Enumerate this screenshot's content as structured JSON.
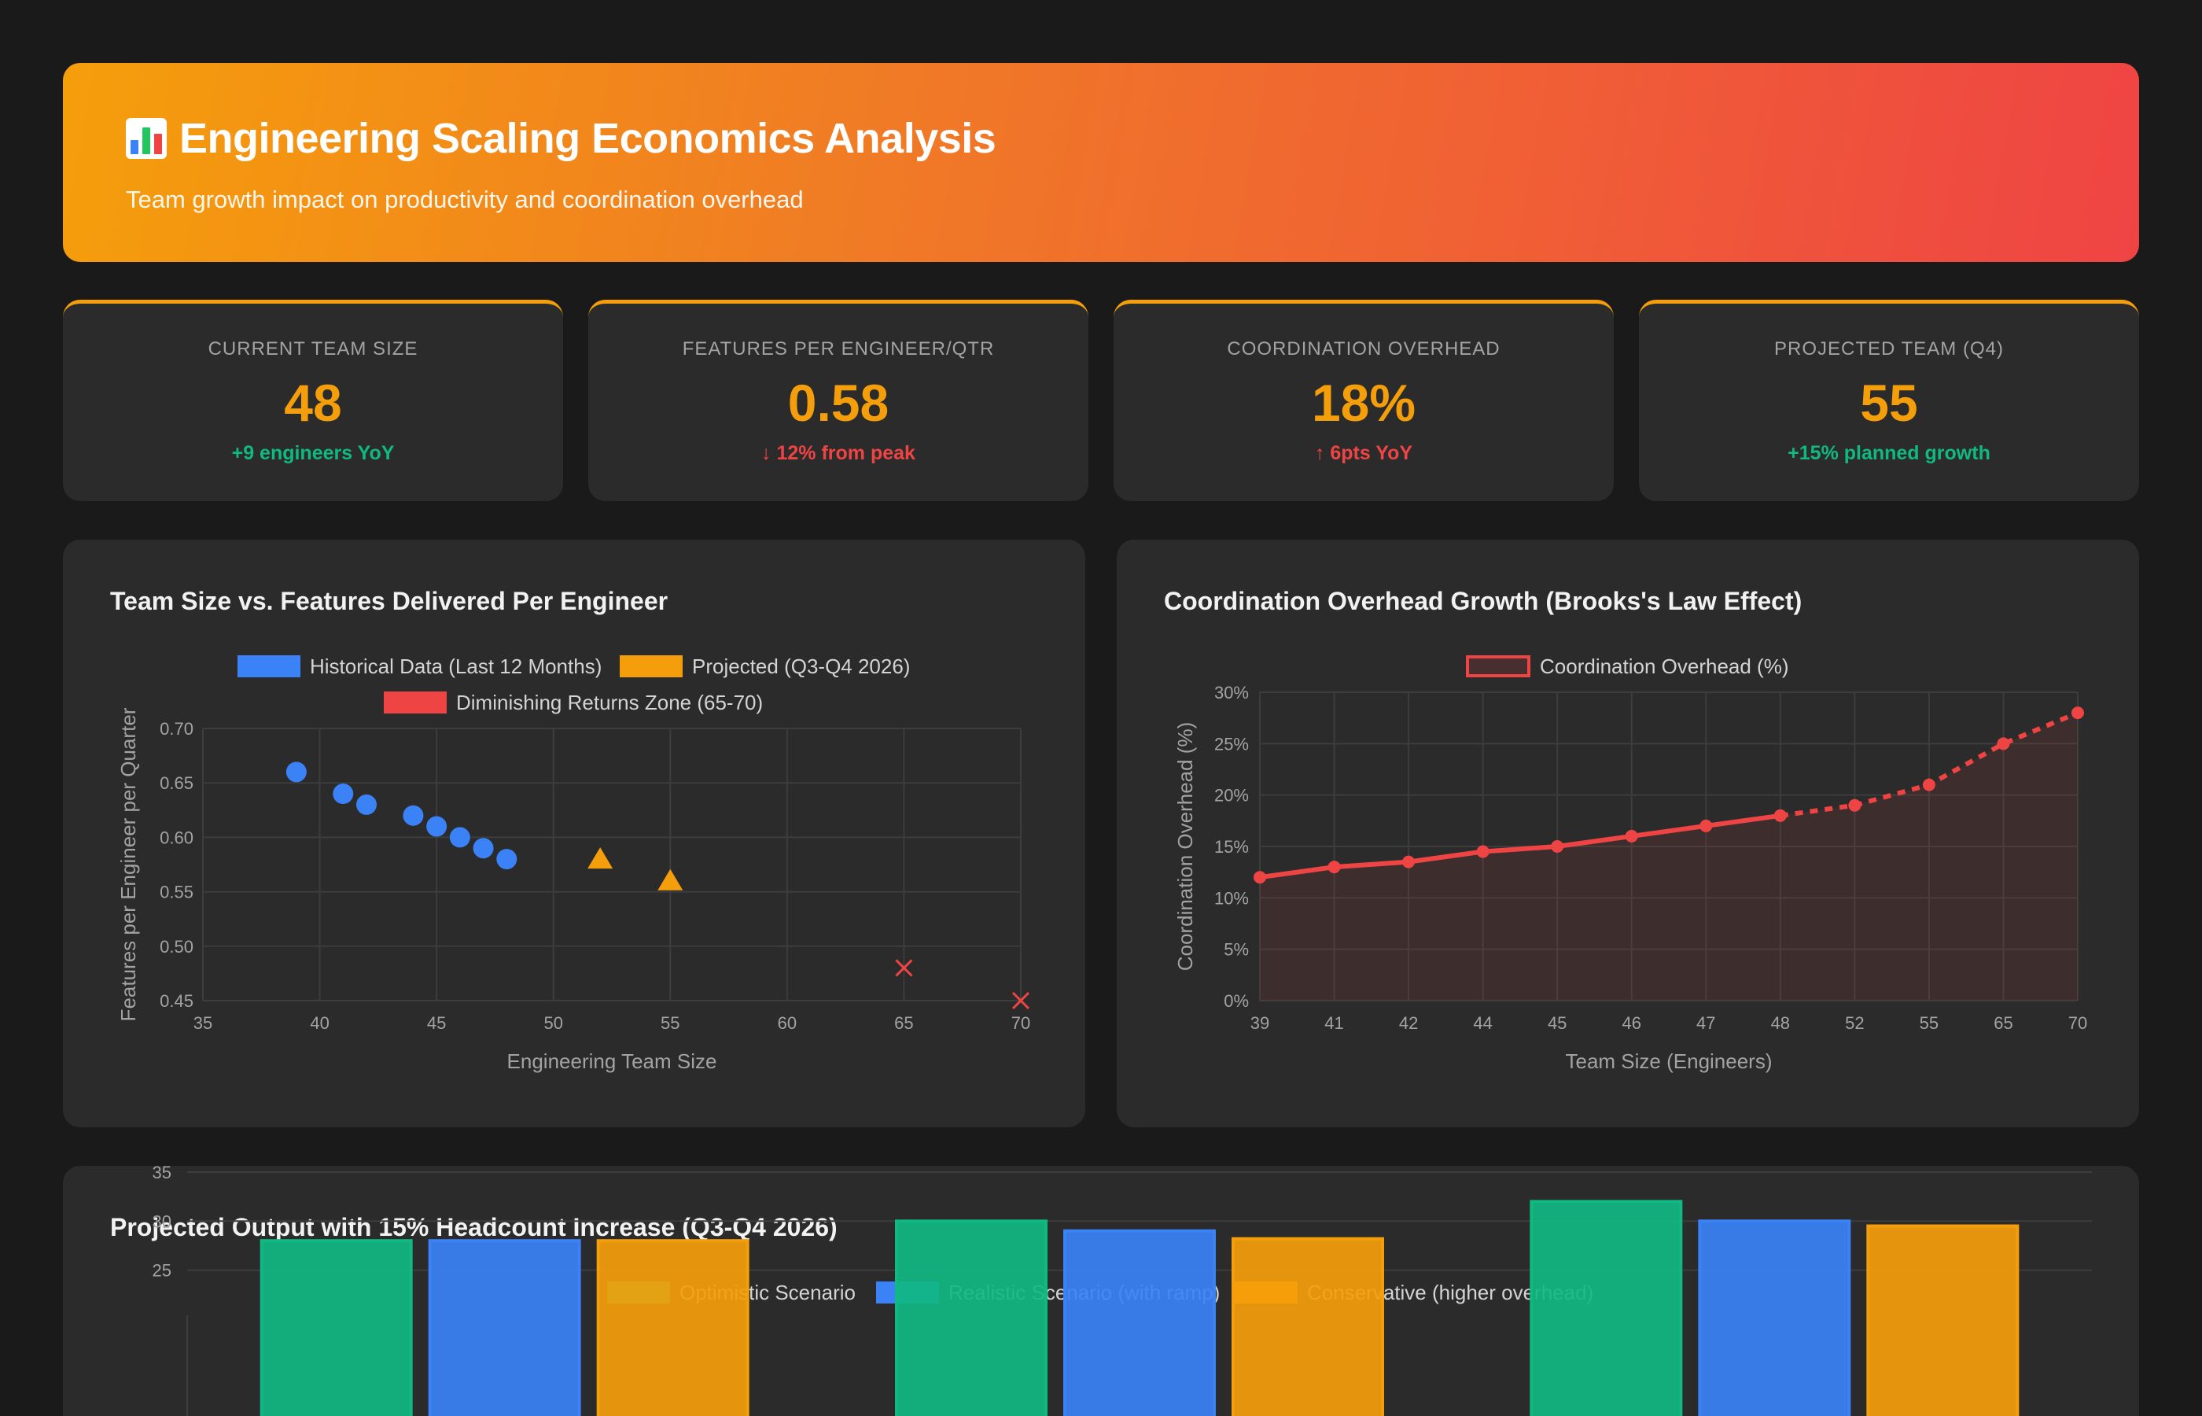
{
  "header": {
    "title": "Engineering Scaling Economics Analysis",
    "subtitle": "Team growth impact on productivity and coordination overhead",
    "icon": "bar-chart-emoji-icon"
  },
  "kpis": [
    {
      "label": "CURRENT TEAM SIZE",
      "value": "48",
      "delta": "+9 engineers YoY",
      "trend": "positive"
    },
    {
      "label": "FEATURES PER ENGINEER/QTR",
      "value": "0.58",
      "delta": "↓ 12% from peak",
      "trend": "negative"
    },
    {
      "label": "COORDINATION OVERHEAD",
      "value": "18%",
      "delta": "↑ 6pts YoY",
      "trend": "negative"
    },
    {
      "label": "PROJECTED TEAM (Q4)",
      "value": "55",
      "delta": "+15% planned growth",
      "trend": "positive"
    }
  ],
  "colors": {
    "accent": "#f59e0b",
    "blue": "#3b82f6",
    "red": "#ef4444",
    "green": "#10b981"
  },
  "chart_data": [
    {
      "type": "scatter",
      "title": "Team Size vs. Features Delivered Per Engineer",
      "xlabel": "Engineering Team Size",
      "ylabel": "Features per Engineer per Quarter",
      "xlim": [
        35,
        70
      ],
      "ylim": [
        0.45,
        0.7
      ],
      "xticks": [
        "35",
        "40",
        "45",
        "50",
        "55",
        "60",
        "65",
        "70"
      ],
      "yticks": [
        "0.45",
        "0.50",
        "0.55",
        "0.60",
        "0.65",
        "0.70"
      ],
      "grid": true,
      "legend_position": "top",
      "series": [
        {
          "name": "Historical Data (Last 12 Months)",
          "color": "#3b82f6",
          "marker": "circle",
          "points": [
            [
              39,
              0.66
            ],
            [
              41,
              0.64
            ],
            [
              42,
              0.63
            ],
            [
              44,
              0.62
            ],
            [
              45,
              0.61
            ],
            [
              46,
              0.6
            ],
            [
              47,
              0.59
            ],
            [
              48,
              0.58
            ]
          ]
        },
        {
          "name": "Projected (Q3-Q4 2026)",
          "color": "#f59e0b",
          "marker": "triangle",
          "points": [
            [
              52,
              0.58
            ],
            [
              55,
              0.56
            ]
          ]
        },
        {
          "name": "Diminishing Returns Zone (65-70)",
          "color": "#ef4444",
          "marker": "cross",
          "points": [
            [
              65,
              0.48
            ],
            [
              70,
              0.45
            ]
          ]
        }
      ]
    },
    {
      "type": "line",
      "title": "Coordination Overhead Growth (Brooks's Law Effect)",
      "xlabel": "Team Size (Engineers)",
      "ylabel": "Coordination Overhead (%)",
      "categories": [
        "39",
        "41",
        "42",
        "44",
        "45",
        "46",
        "47",
        "48",
        "52",
        "55",
        "65",
        "70"
      ],
      "ylim": [
        0,
        30
      ],
      "yticks": [
        "0%",
        "5%",
        "10%",
        "15%",
        "20%",
        "25%",
        "30%"
      ],
      "grid": true,
      "legend_position": "top",
      "series": [
        {
          "name": "Coordination Overhead (%)",
          "color": "#ef4444",
          "values": [
            12,
            13,
            13.5,
            14.5,
            15,
            16,
            17,
            18,
            19,
            21,
            25,
            28
          ],
          "projected_from_index": 7
        }
      ]
    },
    {
      "type": "bar",
      "title": "Projected Output with 15% Headcount Increase (Q3-Q4 2026)",
      "ylim": [
        0,
        35
      ],
      "yticks": [
        "35",
        "30",
        "25"
      ],
      "ylabel": "",
      "xlabel": "",
      "grid": true,
      "legend_position": "top",
      "series": [
        {
          "name": "Optimistic Scenario",
          "color": "#10b981",
          "values": [
            28,
            30,
            32
          ]
        },
        {
          "name": "Realistic Scenario (with ramp)",
          "color": "#3b82f6",
          "values": [
            28,
            29,
            30
          ]
        },
        {
          "name": "Conservative (higher overhead)",
          "color": "#f59e0b",
          "values": [
            28,
            28.2,
            29.5
          ]
        }
      ]
    }
  ]
}
